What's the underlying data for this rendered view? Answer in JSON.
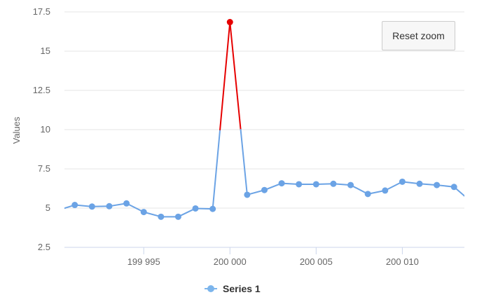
{
  "chart_data": {
    "type": "line",
    "title": "",
    "xlabel": "",
    "ylabel": "Values",
    "xlim": [
      199990.4,
      200013.6
    ],
    "ylim": [
      2.5,
      17.5
    ],
    "y_ticks": [
      2.5,
      5,
      7.5,
      10,
      12.5,
      15,
      17.5
    ],
    "y_tick_labels": [
      "2.5",
      "5",
      "7.5",
      "10",
      "12.5",
      "15",
      "17.5"
    ],
    "x_ticks": [
      199995,
      200000,
      200005,
      200010
    ],
    "x_tick_labels": [
      "199 995",
      "200 000",
      "200 005",
      "200 010"
    ],
    "grid": true,
    "legend_position": "bottom",
    "threshold": 10,
    "colors": {
      "series": "#6ba3e5",
      "above_threshold": "#e60000",
      "gridline": "#e6e6e6",
      "axis": "#ccd6eb"
    },
    "series": [
      {
        "name": "Series 1",
        "x": [
          199990,
          199991,
          199992,
          199993,
          199994,
          199995,
          199996,
          199997,
          199998,
          199999,
          200000,
          200001,
          200002,
          200003,
          200004,
          200005,
          200006,
          200007,
          200008,
          200009,
          200010,
          200011,
          200012,
          200013,
          200014
        ],
        "values": [
          4.85,
          5.2,
          5.1,
          5.12,
          5.3,
          4.75,
          4.45,
          4.45,
          4.98,
          4.95,
          16.85,
          5.85,
          6.15,
          6.58,
          6.52,
          6.52,
          6.55,
          6.47,
          5.9,
          6.12,
          6.68,
          6.55,
          6.47,
          6.35,
          5.4
        ]
      }
    ]
  },
  "ui": {
    "reset_zoom_label": "Reset zoom",
    "legend_label": "Series 1"
  }
}
